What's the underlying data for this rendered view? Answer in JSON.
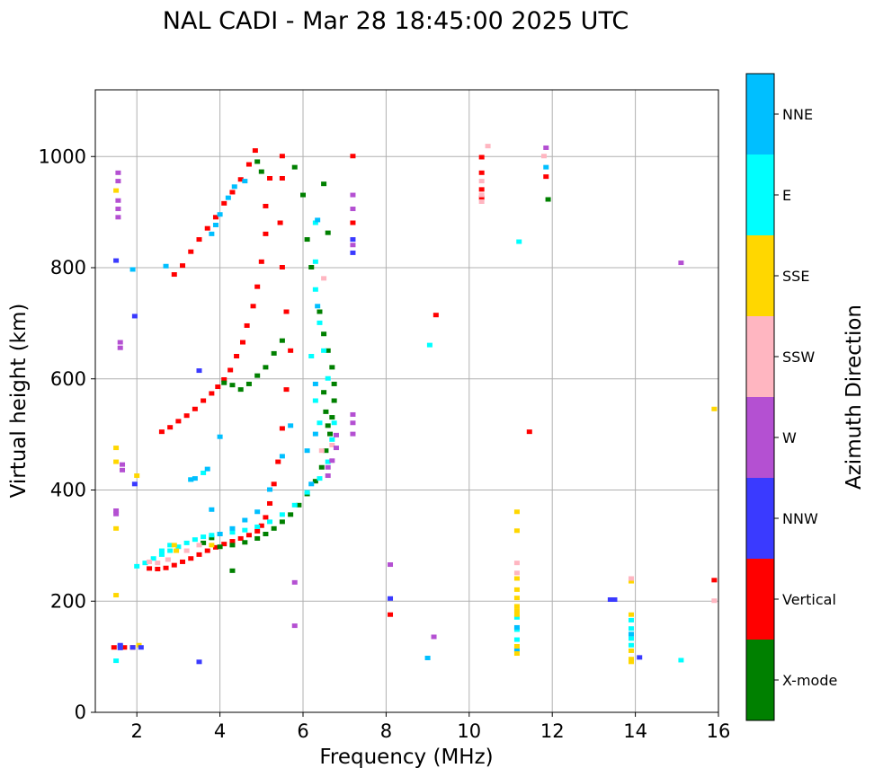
{
  "chart_data": {
    "type": "scatter",
    "title": "NAL CADI - Mar 28 18:45:00 2025 UTC",
    "xlabel": "Frequency (MHz)",
    "ylabel": "Virtual height (km)",
    "xlim": [
      1.0,
      16.0
    ],
    "ylim": [
      0,
      1120
    ],
    "xticks": [
      2,
      4,
      6,
      8,
      10,
      12,
      14,
      16
    ],
    "yticks": [
      0,
      200,
      400,
      600,
      800,
      1000
    ],
    "grid": true,
    "colorbar": {
      "label": "Azimuth Direction",
      "categories": [
        "X-mode",
        "Vertical",
        "NNW",
        "W",
        "SSW",
        "SSE",
        "E",
        "NNE"
      ],
      "colors": [
        "#008000",
        "#ff0000",
        "#3a3aff",
        "#b450d2",
        "#ffb6c1",
        "#ffd700",
        "#00ffff",
        "#00bfff"
      ]
    },
    "series": [
      {
        "name": "Vertical",
        "points": [
          [
            2.3,
            258
          ],
          [
            2.5,
            257
          ],
          [
            2.7,
            259
          ],
          [
            2.9,
            264
          ],
          [
            3.1,
            270
          ],
          [
            3.3,
            276
          ],
          [
            3.5,
            283
          ],
          [
            3.7,
            290
          ],
          [
            3.9,
            296
          ],
          [
            4.1,
            302
          ],
          [
            4.3,
            307
          ],
          [
            4.5,
            312
          ],
          [
            4.7,
            318
          ],
          [
            4.9,
            325
          ],
          [
            5.0,
            335
          ],
          [
            5.1,
            350
          ],
          [
            5.2,
            375
          ],
          [
            5.3,
            410
          ],
          [
            5.4,
            450
          ],
          [
            5.5,
            510
          ],
          [
            5.6,
            580
          ],
          [
            5.7,
            650
          ],
          [
            5.6,
            720
          ],
          [
            5.5,
            800
          ],
          [
            5.45,
            880
          ],
          [
            5.5,
            960
          ],
          [
            5.5,
            1000
          ],
          [
            2.6,
            504
          ],
          [
            2.8,
            512
          ],
          [
            3.0,
            523
          ],
          [
            3.2,
            533
          ],
          [
            3.4,
            545
          ],
          [
            3.6,
            560
          ],
          [
            3.8,
            573
          ],
          [
            3.95,
            585
          ],
          [
            4.1,
            598
          ],
          [
            4.25,
            615
          ],
          [
            4.4,
            640
          ],
          [
            4.55,
            665
          ],
          [
            4.65,
            695
          ],
          [
            4.8,
            730
          ],
          [
            4.9,
            765
          ],
          [
            5.0,
            810
          ],
          [
            5.1,
            860
          ],
          [
            5.1,
            910
          ],
          [
            5.2,
            960
          ],
          [
            2.9,
            787
          ],
          [
            3.1,
            803
          ],
          [
            3.3,
            828
          ],
          [
            3.5,
            850
          ],
          [
            3.7,
            870
          ],
          [
            3.9,
            890
          ],
          [
            4.1,
            915
          ],
          [
            4.3,
            935
          ],
          [
            4.5,
            958
          ],
          [
            4.7,
            985
          ],
          [
            4.85,
            1010
          ],
          [
            10.3,
            998
          ],
          [
            10.3,
            970
          ],
          [
            10.3,
            940
          ],
          [
            10.3,
            925
          ],
          [
            7.2,
            1000
          ],
          [
            7.2,
            880
          ],
          [
            11.85,
            963
          ],
          [
            8.1,
            175
          ],
          [
            9.2,
            714
          ],
          [
            11.45,
            504
          ],
          [
            15.9,
            237
          ],
          [
            1.45,
            116
          ],
          [
            1.7,
            116
          ],
          [
            1.9,
            116
          ]
        ]
      },
      {
        "name": "X-mode",
        "points": [
          [
            4.0,
            297
          ],
          [
            4.3,
            300
          ],
          [
            4.6,
            305
          ],
          [
            4.9,
            312
          ],
          [
            5.1,
            320
          ],
          [
            5.3,
            330
          ],
          [
            5.5,
            342
          ],
          [
            5.7,
            355
          ],
          [
            5.9,
            372
          ],
          [
            6.1,
            392
          ],
          [
            6.3,
            415
          ],
          [
            6.45,
            440
          ],
          [
            6.55,
            470
          ],
          [
            6.65,
            500
          ],
          [
            6.7,
            530
          ],
          [
            6.75,
            560
          ],
          [
            6.75,
            590
          ],
          [
            6.7,
            620
          ],
          [
            6.6,
            650
          ],
          [
            6.5,
            680
          ],
          [
            6.4,
            720
          ],
          [
            6.2,
            800
          ],
          [
            6.1,
            850
          ],
          [
            6.0,
            930
          ],
          [
            5.8,
            980
          ],
          [
            5.5,
            668
          ],
          [
            5.3,
            645
          ],
          [
            5.1,
            620
          ],
          [
            4.9,
            605
          ],
          [
            4.7,
            590
          ],
          [
            4.5,
            580
          ],
          [
            4.3,
            588
          ],
          [
            4.1,
            592
          ],
          [
            3.8,
            313
          ],
          [
            3.6,
            304
          ],
          [
            5.0,
            972
          ],
          [
            4.9,
            990
          ],
          [
            6.5,
            950
          ],
          [
            6.6,
            862
          ],
          [
            6.5,
            575
          ],
          [
            6.55,
            540
          ],
          [
            6.6,
            515
          ],
          [
            11.9,
            922
          ],
          [
            4.3,
            254
          ]
        ]
      },
      {
        "name": "E",
        "points": [
          [
            2.0,
            262
          ],
          [
            2.2,
            268
          ],
          [
            2.4,
            276
          ],
          [
            2.6,
            283
          ],
          [
            2.8,
            290
          ],
          [
            3.0,
            297
          ],
          [
            3.2,
            304
          ],
          [
            3.4,
            310
          ],
          [
            3.6,
            315
          ],
          [
            3.8,
            318
          ],
          [
            4.0,
            320
          ],
          [
            4.3,
            323
          ],
          [
            4.6,
            327
          ],
          [
            4.9,
            333
          ],
          [
            5.2,
            342
          ],
          [
            5.5,
            355
          ],
          [
            5.8,
            372
          ],
          [
            6.1,
            395
          ],
          [
            6.4,
            420
          ],
          [
            6.6,
            450
          ],
          [
            6.7,
            490
          ],
          [
            6.75,
            520
          ],
          [
            6.6,
            600
          ],
          [
            6.5,
            650
          ],
          [
            6.4,
            700
          ],
          [
            6.3,
            760
          ],
          [
            6.3,
            810
          ],
          [
            6.3,
            880
          ],
          [
            1.5,
            92
          ],
          [
            1.6,
            118
          ],
          [
            2.6,
            290
          ],
          [
            2.8,
            300
          ],
          [
            3.3,
            418
          ],
          [
            3.6,
            430
          ],
          [
            9.05,
            660
          ],
          [
            11.15,
            170
          ],
          [
            11.15,
            148
          ],
          [
            11.15,
            130
          ],
          [
            13.9,
            165
          ],
          [
            13.9,
            150
          ],
          [
            13.9,
            132
          ],
          [
            13.9,
            120
          ],
          [
            15.1,
            93
          ],
          [
            11.2,
            846
          ],
          [
            6.2,
            640
          ],
          [
            6.3,
            560
          ],
          [
            6.4,
            520
          ]
        ]
      },
      {
        "name": "NNE",
        "points": [
          [
            3.3,
            418
          ],
          [
            3.4,
            420
          ],
          [
            3.7,
            437
          ],
          [
            4.0,
            320
          ],
          [
            4.3,
            330
          ],
          [
            4.6,
            345
          ],
          [
            4.9,
            360
          ],
          [
            5.2,
            400
          ],
          [
            5.5,
            460
          ],
          [
            5.7,
            515
          ],
          [
            6.1,
            470
          ],
          [
            6.3,
            500
          ],
          [
            6.35,
            730
          ],
          [
            6.3,
            590
          ],
          [
            6.35,
            885
          ],
          [
            6.2,
            410
          ],
          [
            3.8,
            860
          ],
          [
            3.9,
            876
          ],
          [
            4.0,
            895
          ],
          [
            4.2,
            925
          ],
          [
            4.35,
            945
          ],
          [
            4.6,
            955
          ],
          [
            2.7,
            802
          ],
          [
            1.9,
            796
          ],
          [
            11.85,
            980
          ],
          [
            9.0,
            97
          ],
          [
            3.8,
            364
          ],
          [
            4.0,
            495
          ],
          [
            11.15,
            152
          ],
          [
            11.15,
            112
          ],
          [
            13.9,
            140
          ]
        ]
      },
      {
        "name": "SSE",
        "points": [
          [
            11.15,
            360
          ],
          [
            11.15,
            326
          ],
          [
            11.15,
            240
          ],
          [
            11.15,
            220
          ],
          [
            11.15,
            205
          ],
          [
            11.15,
            190
          ],
          [
            11.15,
            182
          ],
          [
            11.15,
            175
          ],
          [
            11.15,
            118
          ],
          [
            11.15,
            105
          ],
          [
            13.9,
            235
          ],
          [
            13.9,
            175
          ],
          [
            13.9,
            110
          ],
          [
            13.9,
            95
          ],
          [
            13.9,
            90
          ],
          [
            15.9,
            545
          ],
          [
            1.5,
            938
          ],
          [
            1.5,
            475
          ],
          [
            1.5,
            450
          ],
          [
            1.5,
            330
          ],
          [
            1.5,
            210
          ],
          [
            2.9,
            300
          ],
          [
            2.95,
            290
          ],
          [
            3.8,
            300
          ],
          [
            2.0,
            425
          ],
          [
            2.05,
            120
          ]
        ]
      },
      {
        "name": "SSW",
        "points": [
          [
            2.3,
            270
          ],
          [
            2.5,
            268
          ],
          [
            2.75,
            274
          ],
          [
            3.2,
            290
          ],
          [
            3.5,
            300
          ],
          [
            6.5,
            780
          ],
          [
            10.3,
            955
          ],
          [
            10.3,
            930
          ],
          [
            10.3,
            918
          ],
          [
            10.45,
            1018
          ],
          [
            11.15,
            268
          ],
          [
            11.15,
            250
          ],
          [
            11.8,
            1000
          ],
          [
            13.9,
            240
          ],
          [
            6.45,
            470
          ],
          [
            6.7,
            480
          ],
          [
            15.9,
            200
          ]
        ]
      },
      {
        "name": "W",
        "points": [
          [
            1.55,
            970
          ],
          [
            1.55,
            955
          ],
          [
            1.55,
            920
          ],
          [
            1.55,
            905
          ],
          [
            1.55,
            890
          ],
          [
            1.6,
            665
          ],
          [
            1.6,
            655
          ],
          [
            1.65,
            445
          ],
          [
            1.65,
            435
          ],
          [
            1.5,
            362
          ],
          [
            1.5,
            356
          ],
          [
            6.6,
            425
          ],
          [
            6.6,
            440
          ],
          [
            6.7,
            452
          ],
          [
            6.8,
            475
          ],
          [
            6.8,
            498
          ],
          [
            7.2,
            535
          ],
          [
            7.2,
            520
          ],
          [
            7.2,
            500
          ],
          [
            7.2,
            930
          ],
          [
            7.2,
            905
          ],
          [
            7.2,
            840
          ],
          [
            8.1,
            265
          ],
          [
            9.15,
            135
          ],
          [
            11.85,
            1015
          ],
          [
            15.1,
            808
          ],
          [
            5.8,
            233
          ],
          [
            5.8,
            155
          ]
        ]
      },
      {
        "name": "NNW",
        "points": [
          [
            1.5,
            812
          ],
          [
            1.95,
            712
          ],
          [
            1.95,
            410
          ],
          [
            1.6,
            120
          ],
          [
            1.6,
            115
          ],
          [
            3.5,
            614
          ],
          [
            3.5,
            90
          ],
          [
            7.2,
            826
          ],
          [
            7.2,
            850
          ],
          [
            8.1,
            204
          ],
          [
            13.5,
            202
          ],
          [
            13.4,
            202
          ],
          [
            14.1,
            98
          ],
          [
            1.9,
            116
          ],
          [
            2.1,
            116
          ]
        ]
      }
    ]
  }
}
